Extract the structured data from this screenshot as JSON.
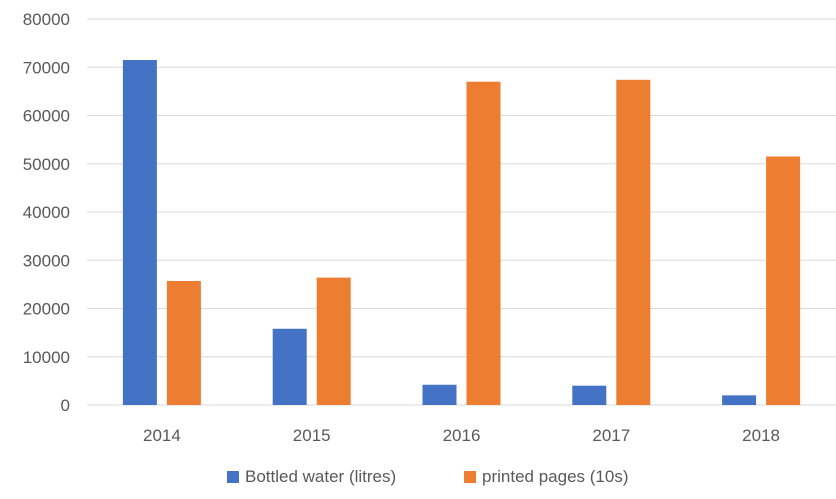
{
  "chart_data": {
    "type": "bar",
    "title": "",
    "xlabel": "",
    "ylabel": "",
    "categories": [
      "2014",
      "2015",
      "2016",
      "2017",
      "2018"
    ],
    "series": [
      {
        "name": "Bottled water (litres)",
        "color": "#4472c4",
        "values": [
          71500,
          15800,
          4200,
          4000,
          2000
        ]
      },
      {
        "name": "printed pages (10s)",
        "color": "#ed7d31",
        "values": [
          25700,
          26400,
          67000,
          67400,
          51500
        ]
      }
    ],
    "ylim": [
      0,
      80000
    ],
    "yticks": [
      "0",
      "10000",
      "20000",
      "30000",
      "40000",
      "50000",
      "60000",
      "70000",
      "80000"
    ],
    "grid": true,
    "legend_position": "bottom"
  }
}
